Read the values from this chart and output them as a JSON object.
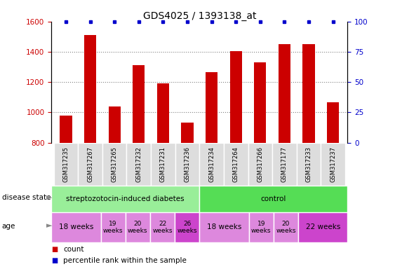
{
  "title": "GDS4025 / 1393138_at",
  "samples": [
    "GSM317235",
    "GSM317267",
    "GSM317265",
    "GSM317232",
    "GSM317231",
    "GSM317236",
    "GSM317234",
    "GSM317264",
    "GSM317266",
    "GSM317177",
    "GSM317233",
    "GSM317237"
  ],
  "counts": [
    980,
    1510,
    1040,
    1310,
    1190,
    930,
    1265,
    1405,
    1330,
    1450,
    1450,
    1065
  ],
  "ylim_left": [
    800,
    1600
  ],
  "ylim_right": [
    0,
    100
  ],
  "yticks_left": [
    800,
    1000,
    1200,
    1400,
    1600
  ],
  "yticks_right": [
    0,
    25,
    50,
    75,
    100
  ],
  "bar_color": "#cc0000",
  "percentile_color": "#0000cc",
  "bar_width": 0.5,
  "disease_state_groups": [
    {
      "label": "streptozotocin-induced diabetes",
      "start": 0,
      "end": 6,
      "color": "#99ee99"
    },
    {
      "label": "control",
      "start": 6,
      "end": 12,
      "color": "#55dd55"
    }
  ],
  "age_groups": [
    {
      "label": "18 weeks",
      "start": 0,
      "end": 2,
      "color": "#dd88dd",
      "fontsize": 7.5,
      "bold": false
    },
    {
      "label": "19\nweeks",
      "start": 2,
      "end": 3,
      "color": "#dd88dd",
      "fontsize": 6.5,
      "bold": false
    },
    {
      "label": "20\nweeks",
      "start": 3,
      "end": 4,
      "color": "#dd88dd",
      "fontsize": 6.5,
      "bold": false
    },
    {
      "label": "22\nweeks",
      "start": 4,
      "end": 5,
      "color": "#dd88dd",
      "fontsize": 6.5,
      "bold": false
    },
    {
      "label": "26\nweeks",
      "start": 5,
      "end": 6,
      "color": "#cc44cc",
      "fontsize": 6.5,
      "bold": false
    },
    {
      "label": "18 weeks",
      "start": 6,
      "end": 8,
      "color": "#dd88dd",
      "fontsize": 7.5,
      "bold": false
    },
    {
      "label": "19\nweeks",
      "start": 8,
      "end": 9,
      "color": "#dd88dd",
      "fontsize": 6.5,
      "bold": false
    },
    {
      "label": "20\nweeks",
      "start": 9,
      "end": 10,
      "color": "#dd88dd",
      "fontsize": 6.5,
      "bold": false
    },
    {
      "label": "22 weeks",
      "start": 10,
      "end": 12,
      "color": "#cc44cc",
      "fontsize": 7.5,
      "bold": false
    }
  ],
  "legend_items": [
    {
      "label": "count",
      "color": "#cc0000"
    },
    {
      "label": "percentile rank within the sample",
      "color": "#0000cc"
    }
  ],
  "left_label_color": "#cc0000",
  "right_label_color": "#0000cc",
  "title_fontsize": 10,
  "tick_label_fontsize": 7.5,
  "sample_fontsize": 6
}
